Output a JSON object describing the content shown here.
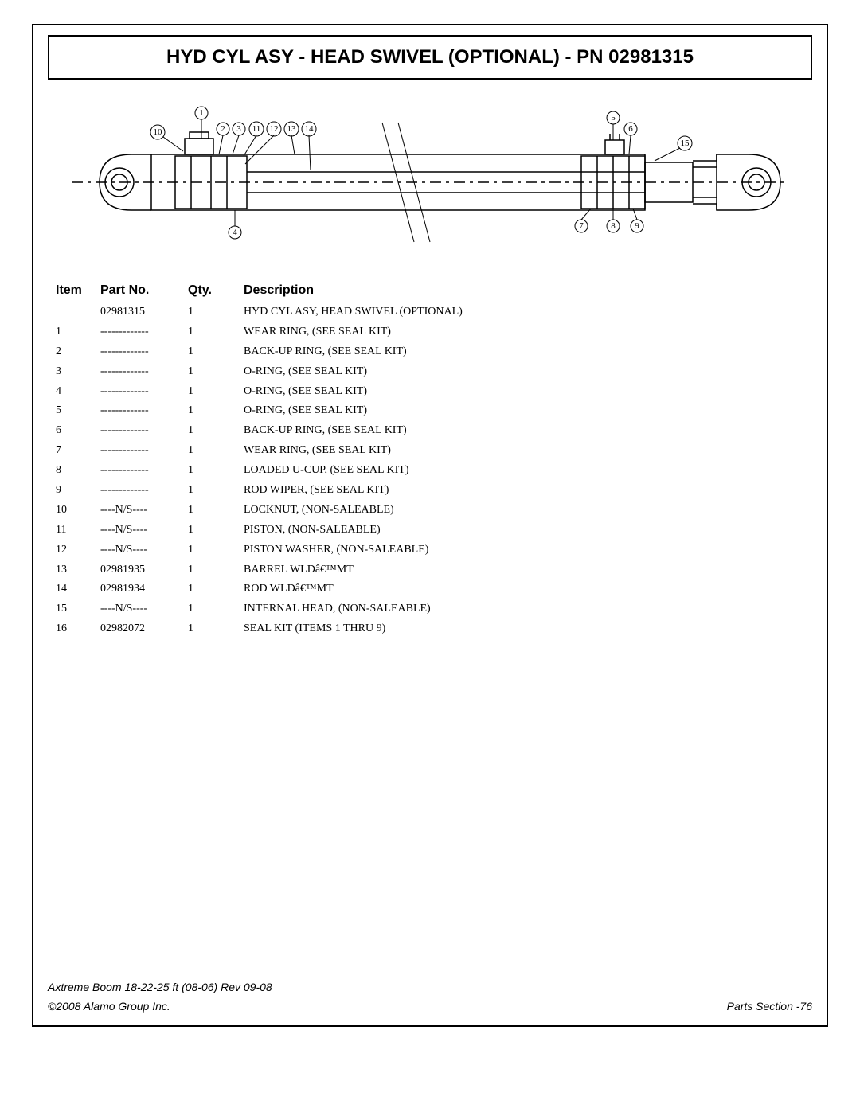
{
  "title": "HYD CYL ASY - HEAD SWIVEL (OPTIONAL) - PN 02981315",
  "columns": {
    "item": "Item",
    "part": "Part No.",
    "qty": "Qty.",
    "desc": "Description"
  },
  "rows": [
    {
      "item": "",
      "part": "02981315",
      "qty": "1",
      "desc": "HYD CYL ASY, HEAD SWIVEL (OPTIONAL)"
    },
    {
      "item": "1",
      "part": "-------------",
      "qty": "1",
      "desc": "WEAR RING, (SEE SEAL KIT)"
    },
    {
      "item": "2",
      "part": "-------------",
      "qty": "1",
      "desc": "BACK-UP RING, (SEE SEAL KIT)"
    },
    {
      "item": "3",
      "part": "-------------",
      "qty": "1",
      "desc": "O-RING, (SEE SEAL KIT)"
    },
    {
      "item": "4",
      "part": "-------------",
      "qty": "1",
      "desc": "O-RING, (SEE SEAL KIT)"
    },
    {
      "item": "5",
      "part": "-------------",
      "qty": "1",
      "desc": "O-RING, (SEE SEAL KIT)"
    },
    {
      "item": "6",
      "part": "-------------",
      "qty": "1",
      "desc": "BACK-UP RING, (SEE SEAL KIT)"
    },
    {
      "item": "7",
      "part": "-------------",
      "qty": "1",
      "desc": "WEAR RING, (SEE SEAL KIT)"
    },
    {
      "item": "8",
      "part": "-------------",
      "qty": "1",
      "desc": "LOADED U-CUP, (SEE SEAL KIT)"
    },
    {
      "item": "9",
      "part": "-------------",
      "qty": "1",
      "desc": "ROD WIPER, (SEE SEAL KIT)"
    },
    {
      "item": "10",
      "part": "----N/S----",
      "qty": "1",
      "desc": "LOCKNUT, (NON-SALEABLE)"
    },
    {
      "item": "11",
      "part": "----N/S----",
      "qty": "1",
      "desc": "PISTON, (NON-SALEABLE)"
    },
    {
      "item": "12",
      "part": "----N/S----",
      "qty": "1",
      "desc": "PISTON WASHER, (NON-SALEABLE)"
    },
    {
      "item": "13",
      "part": "02981935",
      "qty": "1",
      "desc": "BARREL WLDâ€™MT"
    },
    {
      "item": "14",
      "part": "02981934",
      "qty": "1",
      "desc": "ROD WLDâ€™MT"
    },
    {
      "item": "15",
      "part": "----N/S----",
      "qty": "1",
      "desc": "INTERNAL HEAD, (NON-SALEABLE)"
    },
    {
      "item": "16",
      "part": "02982072",
      "qty": "1",
      "desc": "SEAL KIT (ITEMS 1 THRU 9)"
    }
  ],
  "footer": {
    "line1": "Axtreme Boom 18-22-25 ft (08-06) Rev 09-08",
    "left": "©2008 Alamo Group Inc.",
    "right": "Parts Section -76"
  },
  "diagram": {
    "callouts_top_left": [
      "1",
      "2",
      "3",
      "11",
      "12",
      "13",
      "14"
    ],
    "callout_left_side": "10",
    "callout_bottom_left": "4",
    "callouts_top_right": [
      "5",
      "6"
    ],
    "callout_right_side": "15",
    "callouts_bottom_right": [
      "7",
      "8",
      "9"
    ],
    "stroke": "#000000",
    "stroke_w_main": 1.5,
    "stroke_w_thin": 1,
    "bg": "#ffffff"
  }
}
